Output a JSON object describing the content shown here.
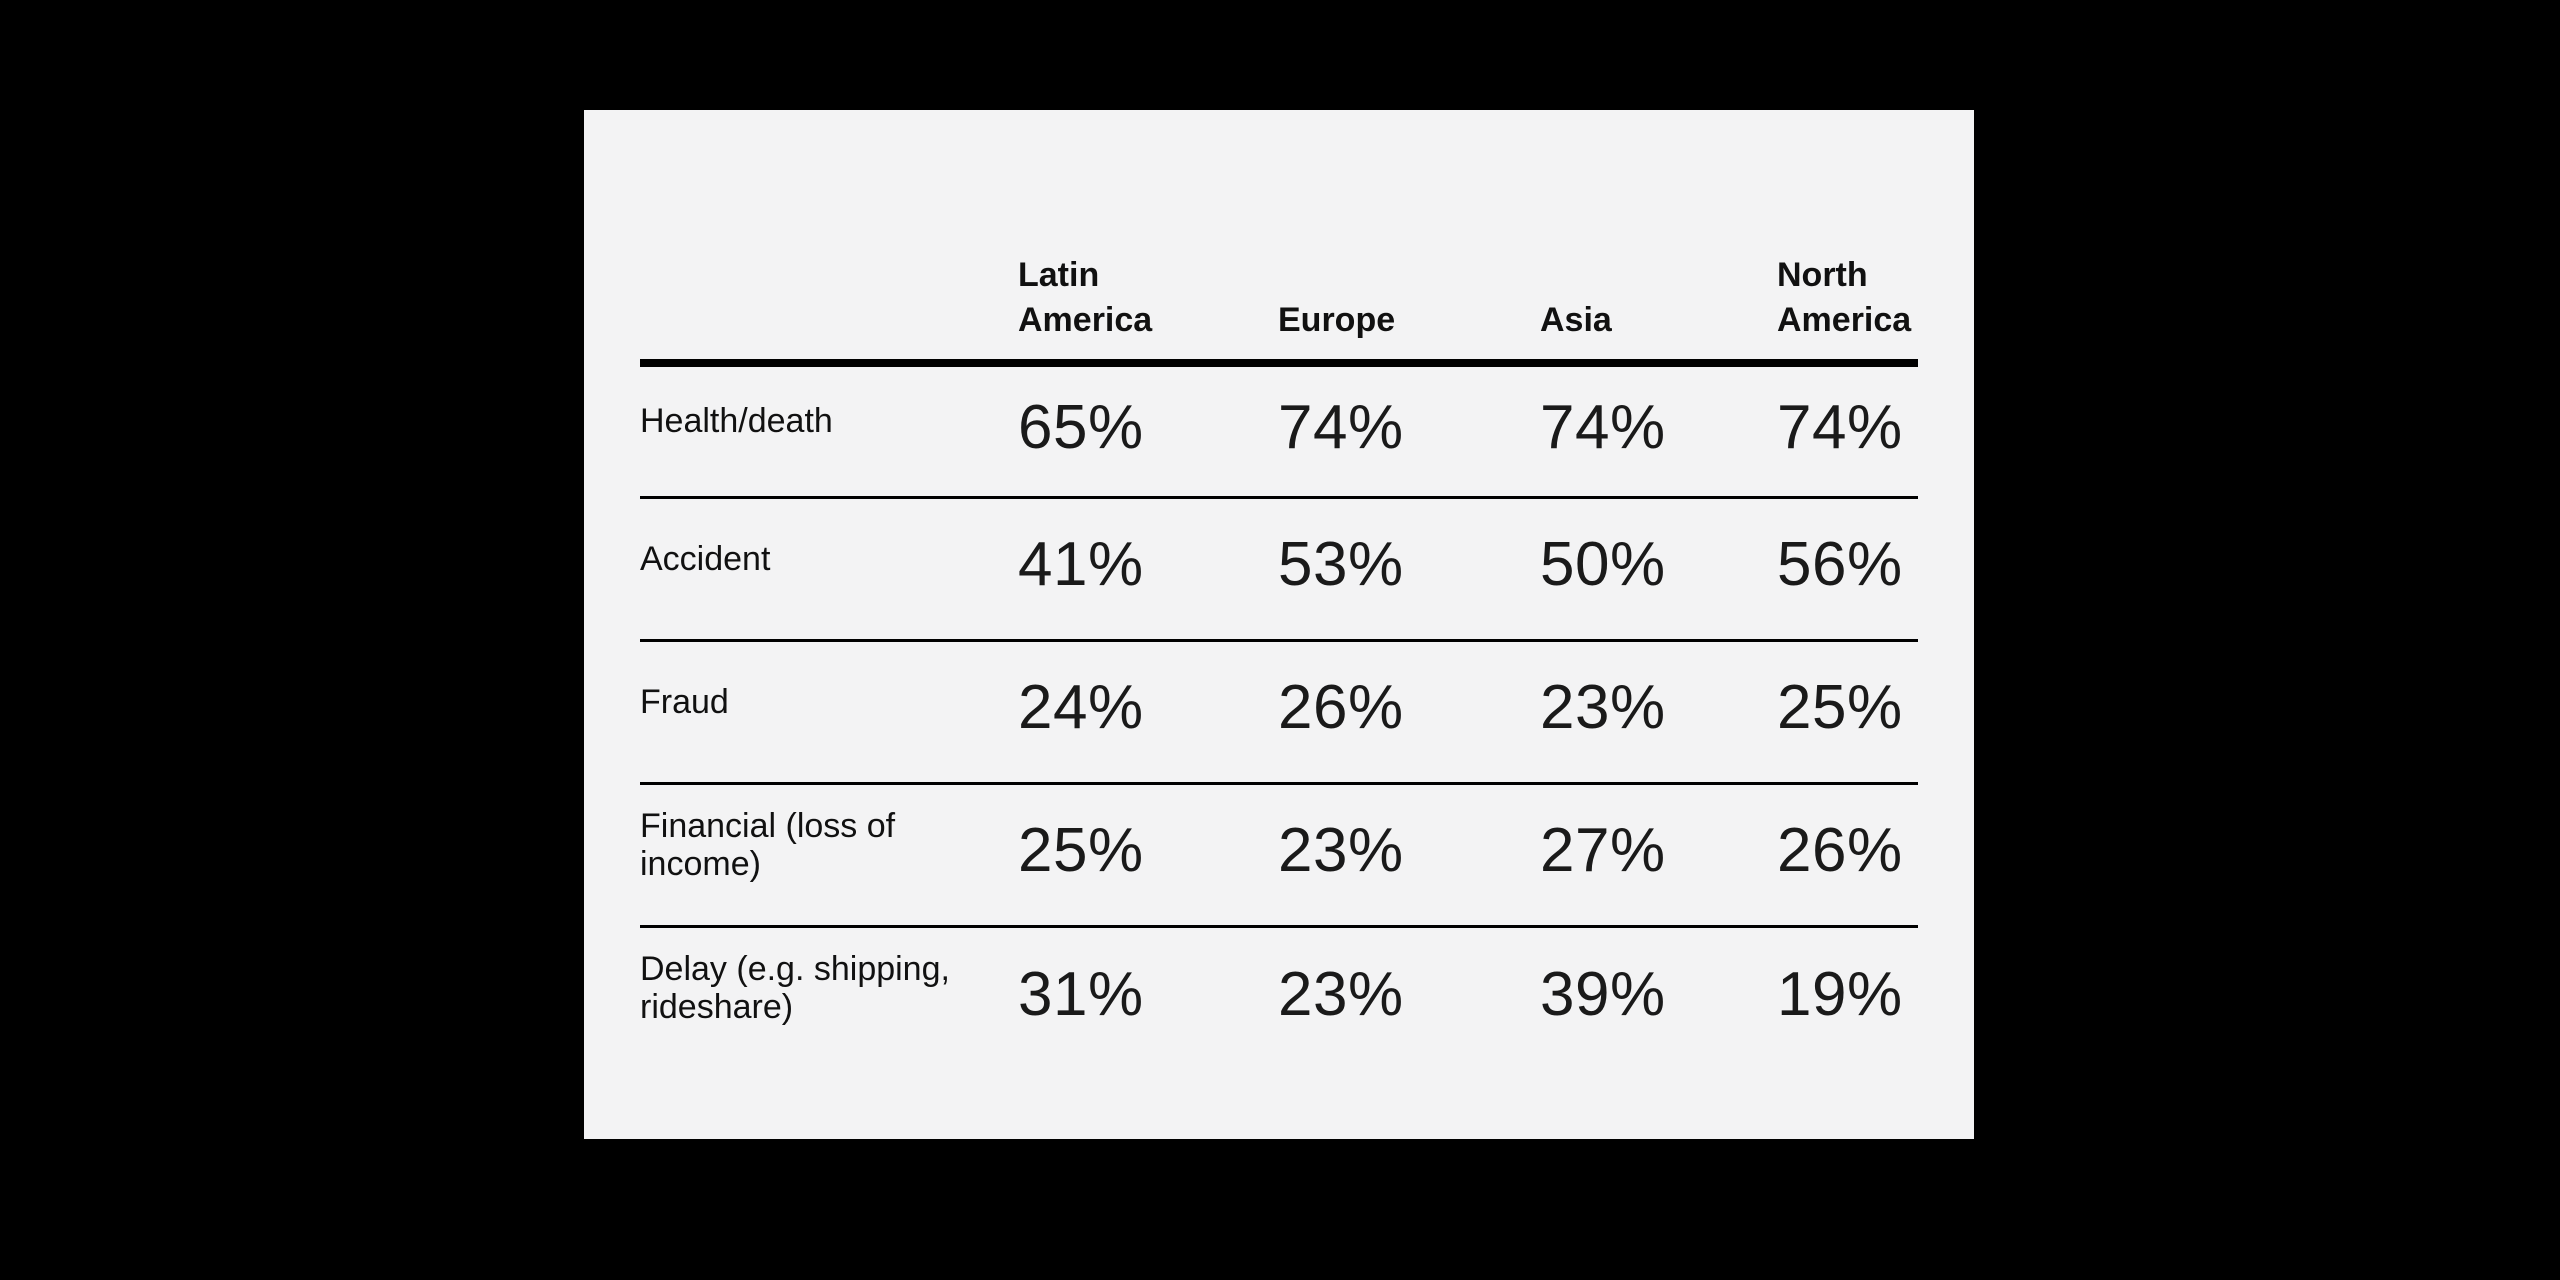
{
  "panel": {
    "background": "#f3f3f4",
    "page_background": "#000000",
    "text_color": "#111111",
    "value_text_color": "#1a1a1a",
    "rule_color": "#000000"
  },
  "table": {
    "columns": [
      "Latin America",
      "Europe",
      "Asia",
      "North America"
    ],
    "rows": [
      {
        "label": "Health/death",
        "values": [
          "65%",
          "74%",
          "74%",
          "74%"
        ]
      },
      {
        "label": "Accident",
        "values": [
          "41%",
          "53%",
          "50%",
          "56%"
        ]
      },
      {
        "label": "Fraud",
        "values": [
          "24%",
          "26%",
          "23%",
          "25%"
        ]
      },
      {
        "label": "Financial (loss of income)",
        "values": [
          "25%",
          "23%",
          "27%",
          "26%"
        ]
      },
      {
        "label": "Delay (e.g. shipping, rideshare)",
        "values": [
          "31%",
          "23%",
          "39%",
          "19%"
        ]
      }
    ]
  },
  "chart_data": {
    "type": "table",
    "title": "",
    "unit": "%",
    "categories": [
      "Latin America",
      "Europe",
      "Asia",
      "North America"
    ],
    "series": [
      {
        "name": "Health/death",
        "values": [
          65,
          74,
          74,
          74
        ]
      },
      {
        "name": "Accident",
        "values": [
          41,
          53,
          50,
          56
        ]
      },
      {
        "name": "Fraud",
        "values": [
          24,
          26,
          23,
          25
        ]
      },
      {
        "name": "Financial (loss of income)",
        "values": [
          25,
          23,
          27,
          26
        ]
      },
      {
        "name": "Delay (e.g. shipping, rideshare)",
        "values": [
          31,
          23,
          39,
          19
        ]
      }
    ]
  }
}
